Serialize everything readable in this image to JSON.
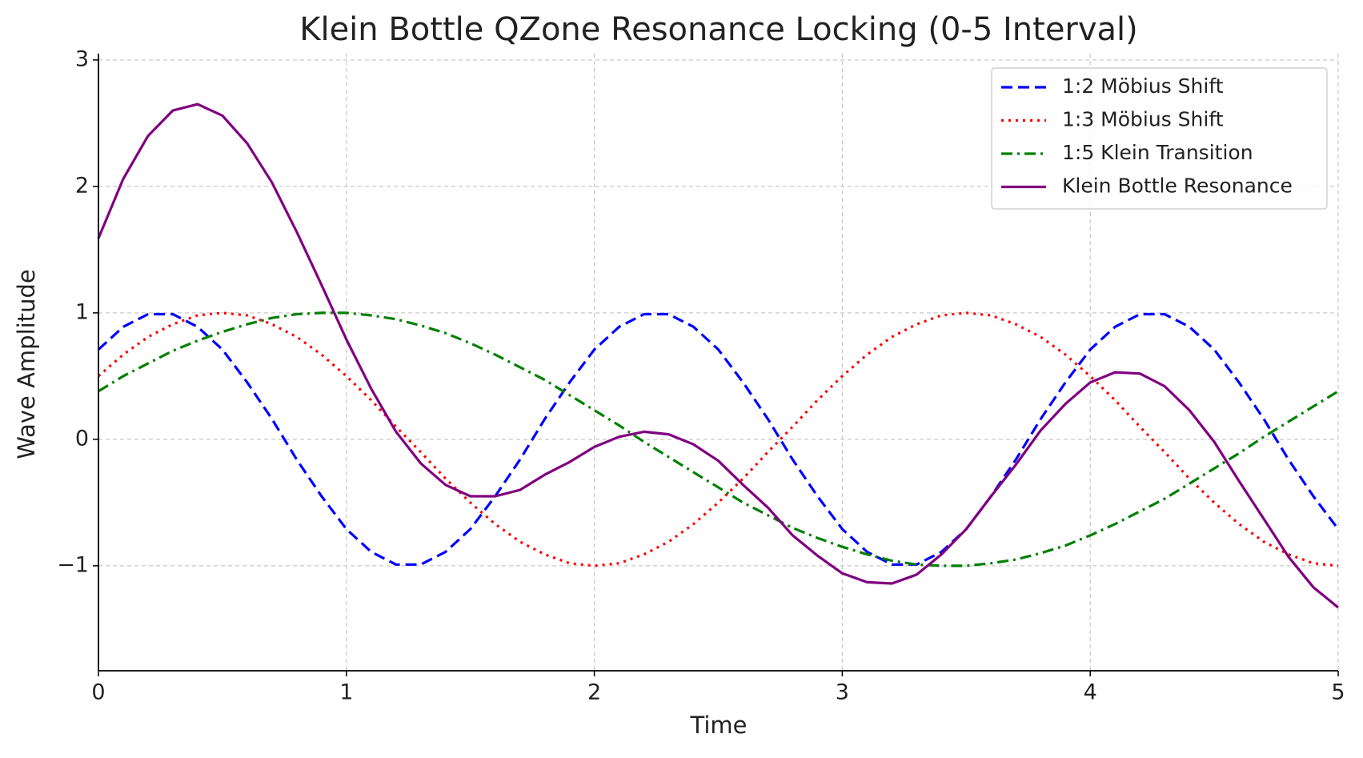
{
  "chart_data": {
    "type": "line",
    "title": "Klein Bottle QZone Resonance Locking (0-5 Interval)",
    "xlabel": "Time",
    "ylabel": "Wave Amplitude",
    "x": [
      0,
      0.1,
      0.2,
      0.3,
      0.4,
      0.5,
      0.6,
      0.7,
      0.8,
      0.9,
      1,
      1.1,
      1.2,
      1.3,
      1.4,
      1.5,
      1.6,
      1.7,
      1.8,
      1.9,
      2,
      2.1,
      2.2,
      2.3,
      2.4,
      2.5,
      2.6,
      2.7,
      2.8,
      2.9,
      3,
      3.1,
      3.2,
      3.3,
      3.4,
      3.5,
      3.6,
      3.7,
      3.8,
      3.9,
      4,
      4.1,
      4.2,
      4.3,
      4.4,
      4.5,
      4.6,
      4.7,
      4.8,
      4.9,
      5
    ],
    "series": [
      {
        "name": "1:2 Möbius Shift",
        "color": "#0000ff",
        "style": "dashed",
        "values": [
          0.71,
          0.89,
          0.99,
          0.99,
          0.89,
          0.71,
          0.45,
          0.16,
          -0.16,
          -0.45,
          -0.71,
          -0.89,
          -0.99,
          -0.99,
          -0.89,
          -0.71,
          -0.45,
          -0.16,
          0.16,
          0.45,
          0.71,
          0.89,
          0.99,
          0.99,
          0.89,
          0.71,
          0.45,
          0.16,
          -0.16,
          -0.45,
          -0.71,
          -0.89,
          -0.99,
          -0.99,
          -0.89,
          -0.71,
          -0.45,
          -0.16,
          0.16,
          0.45,
          0.71,
          0.89,
          0.99,
          0.99,
          0.89,
          0.71,
          0.45,
          0.16,
          -0.16,
          -0.45,
          -0.71
        ]
      },
      {
        "name": "1:3 Möbius Shift",
        "color": "#ff0000",
        "style": "dotted",
        "values": [
          0.5,
          0.67,
          0.81,
          0.91,
          0.98,
          1,
          0.98,
          0.91,
          0.81,
          0.67,
          0.5,
          0.31,
          0.1,
          -0.1,
          -0.31,
          -0.5,
          -0.67,
          -0.81,
          -0.91,
          -0.98,
          -1,
          -0.98,
          -0.91,
          -0.81,
          -0.67,
          -0.5,
          -0.31,
          -0.1,
          0.1,
          0.31,
          0.5,
          0.67,
          0.81,
          0.91,
          0.98,
          1,
          0.98,
          0.91,
          0.81,
          0.67,
          0.5,
          0.31,
          0.1,
          -0.1,
          -0.31,
          -0.5,
          -0.67,
          -0.81,
          -0.91,
          -0.98,
          -1
        ]
      },
      {
        "name": "1:5 Klein Transition",
        "color": "#008000",
        "style": "dashdot",
        "values": [
          0.38,
          0.5,
          0.6,
          0.7,
          0.78,
          0.85,
          0.91,
          0.96,
          0.99,
          1,
          1,
          0.98,
          0.95,
          0.9,
          0.84,
          0.76,
          0.67,
          0.57,
          0.47,
          0.35,
          0.23,
          0.11,
          -0.02,
          -0.14,
          -0.26,
          -0.38,
          -0.5,
          -0.6,
          -0.7,
          -0.78,
          -0.85,
          -0.91,
          -0.96,
          -0.99,
          -1,
          -1,
          -0.98,
          -0.95,
          -0.9,
          -0.84,
          -0.76,
          -0.67,
          -0.57,
          -0.47,
          -0.35,
          -0.23,
          -0.11,
          0.02,
          0.14,
          0.26,
          0.38
        ]
      },
      {
        "name": "Klein Bottle Resonance",
        "color": "#800080",
        "style": "solid",
        "values": [
          1.59,
          2.06,
          2.4,
          2.6,
          2.65,
          2.56,
          2.34,
          2.03,
          1.64,
          1.22,
          0.79,
          0.4,
          0.06,
          -0.19,
          -0.36,
          -0.45,
          -0.45,
          -0.4,
          -0.28,
          -0.18,
          -0.06,
          0.02,
          0.06,
          0.04,
          -0.04,
          -0.17,
          -0.36,
          -0.54,
          -0.76,
          -0.92,
          -1.06,
          -1.13,
          -1.14,
          -1.07,
          -0.91,
          -0.71,
          -0.45,
          -0.2,
          0.07,
          0.28,
          0.45,
          0.53,
          0.52,
          0.42,
          0.23,
          -0.02,
          -0.33,
          -0.63,
          -0.93,
          -1.17,
          -1.33
        ]
      }
    ],
    "xlim": [
      0,
      5
    ],
    "xticks": [
      0,
      1,
      2,
      3,
      4,
      5
    ],
    "ylim": [
      -1.83,
      3.05
    ],
    "yticks": [
      {
        "value": -1,
        "label": "−1"
      },
      0,
      1,
      2,
      3
    ],
    "grid": true,
    "legend": "upper right"
  }
}
